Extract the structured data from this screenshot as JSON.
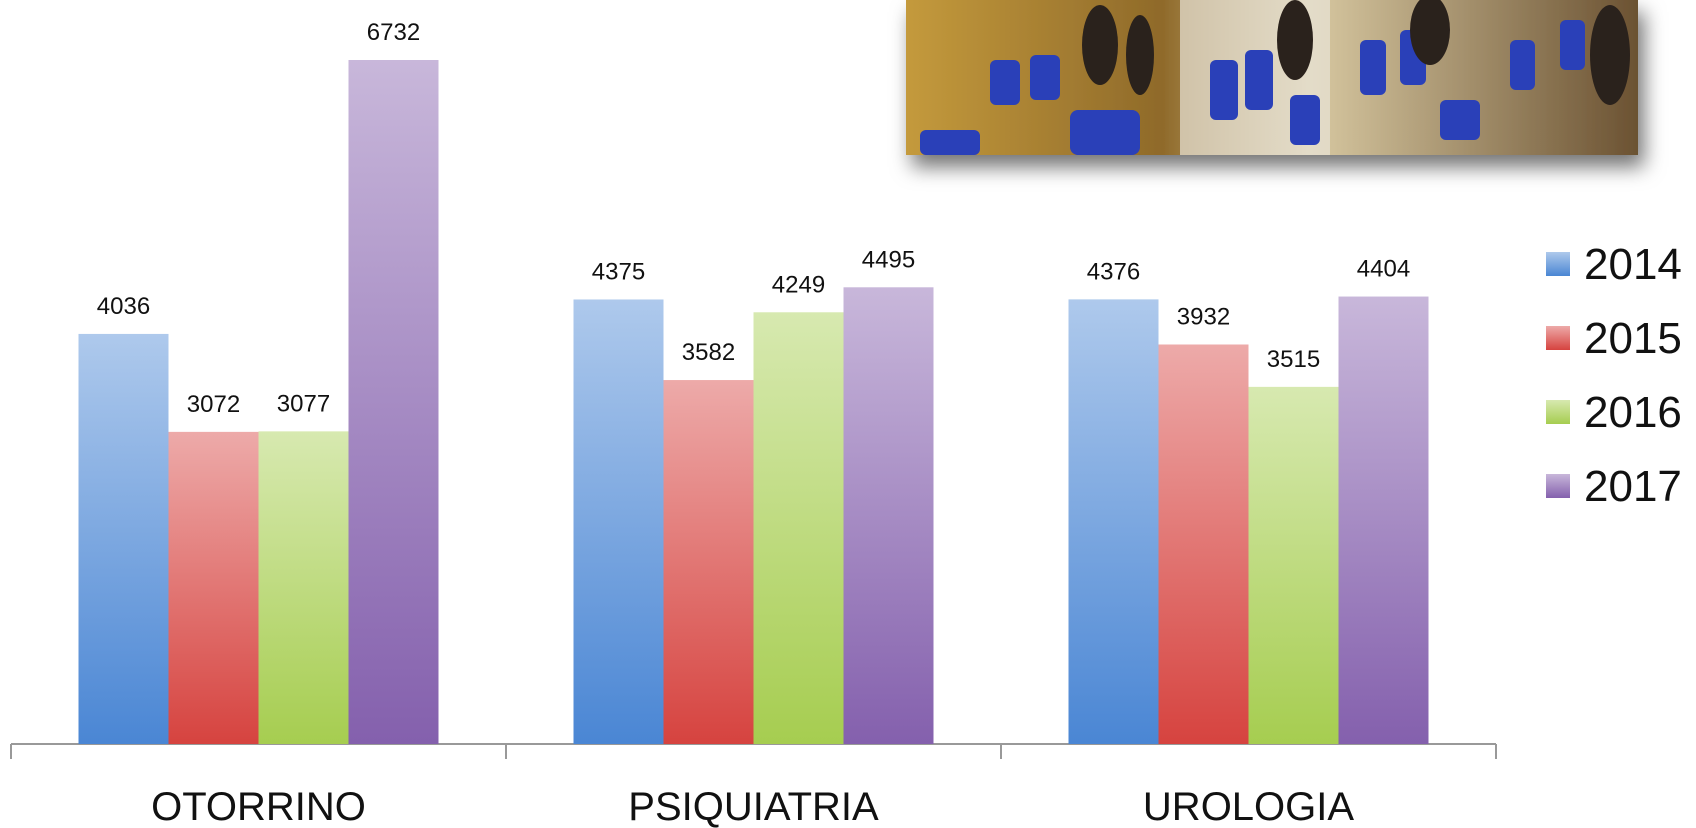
{
  "chart_data": {
    "type": "bar",
    "categories": [
      "OTORRINO",
      "PSIQUIATRIA",
      "UROLOGIA"
    ],
    "series": [
      {
        "name": "2014",
        "color": "#4a86d4",
        "values": [
          4036,
          4375,
          4376
        ]
      },
      {
        "name": "2015",
        "color": "#d6433f",
        "values": [
          3072,
          3582,
          3932
        ]
      },
      {
        "name": "2016",
        "color": "#a6cd50",
        "values": [
          3077,
          4249,
          3515
        ]
      },
      {
        "name": "2017",
        "color": "#8460ad",
        "values": [
          6732,
          4495,
          4404
        ]
      }
    ]
  }
}
